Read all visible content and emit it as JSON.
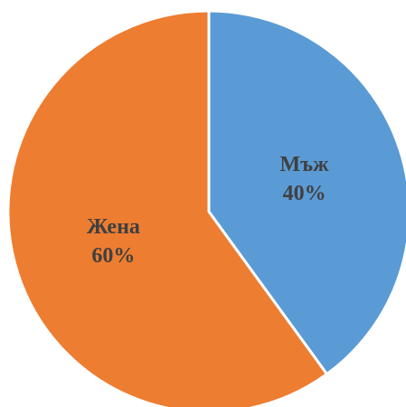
{
  "chart_data": {
    "type": "pie",
    "categories": [
      "Мъж",
      "Жена"
    ],
    "values": [
      40,
      60
    ],
    "value_labels": [
      "40%",
      "60%"
    ],
    "colors": [
      "#5b9bd5",
      "#ed7d31"
    ]
  }
}
